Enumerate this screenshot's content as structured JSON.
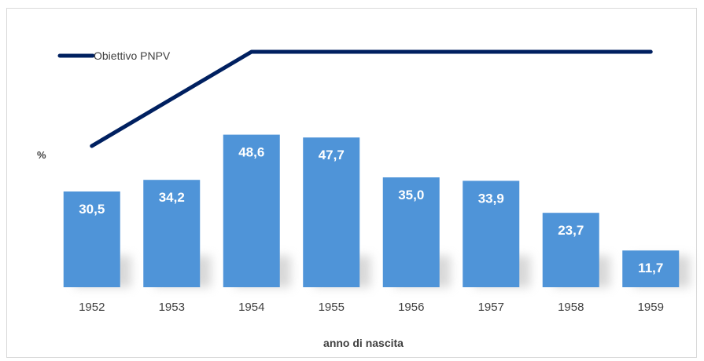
{
  "chart_data": {
    "type": "bar",
    "categories": [
      "1952",
      "1953",
      "1954",
      "1955",
      "1956",
      "1957",
      "1958",
      "1959"
    ],
    "series": [
      {
        "values": [
          30.5,
          34.2,
          48.6,
          47.7,
          35.0,
          33.9,
          23.7,
          11.7
        ]
      },
      {
        "name": "Obiettivo PNPV",
        "type": "line",
        "values": [
          45,
          60,
          75,
          75,
          75,
          75,
          75,
          75
        ]
      }
    ],
    "data_labels": [
      "30,5",
      "34,2",
      "48,6",
      "47,7",
      "35,0",
      "33,9",
      "23,7",
      "11,7"
    ],
    "xlabel": "anno di nascita",
    "ylabel": "%",
    "ylim": [
      0,
      80
    ],
    "grid": false,
    "legend_position": "top-left",
    "colors": {
      "bar": "#4f94d8",
      "line": "#002060"
    }
  }
}
